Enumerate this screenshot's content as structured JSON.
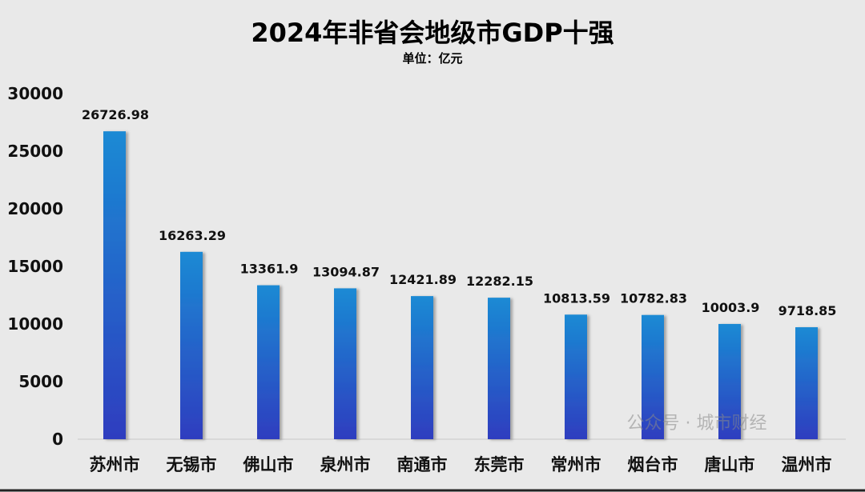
{
  "chart_data": {
    "type": "bar",
    "title": "2024年非省会地级市GDP十强",
    "subtitle": "单位：亿元",
    "categories": [
      "苏州市",
      "无锡市",
      "佛山市",
      "泉州市",
      "南通市",
      "东莞市",
      "常州市",
      "烟台市",
      "唐山市",
      "温州市"
    ],
    "values": [
      26726.98,
      16263.29,
      13361.9,
      13094.87,
      12421.89,
      12282.15,
      10813.59,
      10782.83,
      10003.9,
      9718.85
    ],
    "value_labels": [
      "26726.98",
      "16263.29",
      "13361.9",
      "13094.87",
      "12421.89",
      "12282.15",
      "10813.59",
      "10782.83",
      "10003.9",
      "9718.85"
    ],
    "ylim": [
      0,
      30000
    ],
    "yticks": [
      "0",
      "5000",
      "10000",
      "15000",
      "20000",
      "25000",
      "30000"
    ],
    "grid": false,
    "legend": "none",
    "colors": {
      "bar_top": "#1a8ad4",
      "bar_bottom": "#2f3dbf",
      "background": "#e9e9e9"
    }
  },
  "watermark": "公众号 · 城市财经"
}
